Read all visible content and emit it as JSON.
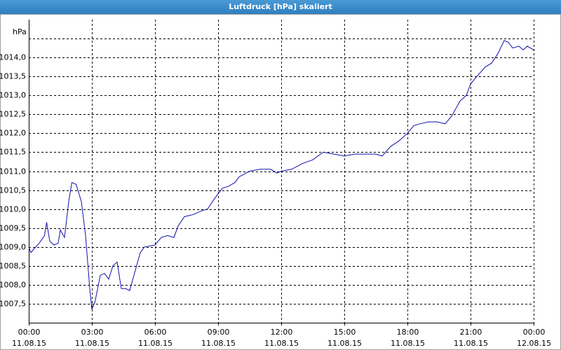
{
  "window_title": "Luftdruck [hPa] skaliert",
  "chart_data": {
    "type": "line",
    "y_unit": "hPa",
    "x": [
      0,
      0.1,
      0.25,
      0.5,
      0.75,
      0.85,
      1.0,
      1.2,
      1.4,
      1.5,
      1.7,
      1.9,
      2.05,
      2.25,
      2.5,
      2.7,
      2.9,
      3.0,
      3.15,
      3.4,
      3.6,
      3.8,
      4.0,
      4.2,
      4.4,
      4.6,
      4.8,
      5.0,
      5.3,
      5.5,
      6.0,
      6.3,
      6.6,
      6.9,
      7.1,
      7.4,
      7.8,
      8.2,
      8.5,
      8.8,
      9.2,
      9.5,
      9.8,
      10.0,
      10.5,
      11.0,
      11.5,
      11.8,
      12.0,
      12.5,
      13.0,
      13.5,
      14.0,
      14.5,
      15.0,
      15.5,
      16.0,
      16.5,
      16.8,
      17.2,
      17.6,
      18.0,
      18.3,
      18.6,
      19.0,
      19.4,
      19.8,
      20.1,
      20.5,
      20.8,
      21.0,
      21.3,
      21.7,
      22.0,
      22.3,
      22.6,
      22.8,
      23.0,
      23.3,
      23.5,
      23.7,
      24.0
    ],
    "series": [
      {
        "color": "#1010a8",
        "values": [
          1009.0,
          1008.85,
          1008.95,
          1009.1,
          1009.3,
          1009.65,
          1009.15,
          1009.05,
          1009.1,
          1009.45,
          1009.25,
          1010.2,
          1010.7,
          1010.65,
          1010.2,
          1009.3,
          1007.9,
          1007.35,
          1007.55,
          1008.25,
          1008.3,
          1008.15,
          1008.5,
          1008.6,
          1007.9,
          1007.9,
          1007.85,
          1008.25,
          1008.85,
          1009.0,
          1009.05,
          1009.25,
          1009.3,
          1009.25,
          1009.55,
          1009.8,
          1009.85,
          1009.95,
          1010.0,
          1010.25,
          1010.55,
          1010.6,
          1010.7,
          1010.85,
          1011.0,
          1011.05,
          1011.05,
          1010.95,
          1011.0,
          1011.05,
          1011.2,
          1011.3,
          1011.5,
          1011.45,
          1011.4,
          1011.45,
          1011.45,
          1011.45,
          1011.4,
          1011.65,
          1011.8,
          1012.0,
          1012.2,
          1012.25,
          1012.3,
          1012.3,
          1012.25,
          1012.45,
          1012.85,
          1013.0,
          1013.3,
          1013.5,
          1013.75,
          1013.85,
          1014.1,
          1014.45,
          1014.4,
          1014.25,
          1014.3,
          1014.2,
          1014.3,
          1014.2
        ]
      }
    ],
    "xlim": [
      0,
      24
    ],
    "xticks": [
      {
        "value": 0,
        "label": "00:00",
        "date": "11.08.15"
      },
      {
        "value": 3,
        "label": "03:00",
        "date": "11.08.15"
      },
      {
        "value": 6,
        "label": "06:00",
        "date": "11.08.15"
      },
      {
        "value": 9,
        "label": "09:00",
        "date": "11.08.15"
      },
      {
        "value": 12,
        "label": "12:00",
        "date": "11.08.15"
      },
      {
        "value": 15,
        "label": "15:00",
        "date": "11.08.15"
      },
      {
        "value": 18,
        "label": "18:00",
        "date": "11.08.15"
      },
      {
        "value": 21,
        "label": "21:00",
        "date": "11.08.15"
      },
      {
        "value": 24,
        "label": "00:00",
        "date": "12.08.15"
      }
    ],
    "ylim": [
      1007.0,
      1015.0
    ],
    "yticks": [
      {
        "value": 1007.5,
        "label": "1007,5"
      },
      {
        "value": 1008.0,
        "label": "1008,0"
      },
      {
        "value": 1008.5,
        "label": "1008,5"
      },
      {
        "value": 1009.0,
        "label": "1009,0"
      },
      {
        "value": 1009.5,
        "label": "1009,5"
      },
      {
        "value": 1010.0,
        "label": "1010,0"
      },
      {
        "value": 1010.5,
        "label": "1010,5"
      },
      {
        "value": 1011.0,
        "label": "1011,0"
      },
      {
        "value": 1011.5,
        "label": "1011,5"
      },
      {
        "value": 1012.0,
        "label": "1012,0"
      },
      {
        "value": 1012.5,
        "label": "1012,5"
      },
      {
        "value": 1013.0,
        "label": "1013,0"
      },
      {
        "value": 1013.5,
        "label": "1013,5"
      },
      {
        "value": 1014.0,
        "label": "1014,0"
      },
      {
        "value": 1014.5,
        "label": null
      }
    ],
    "grid": true
  }
}
